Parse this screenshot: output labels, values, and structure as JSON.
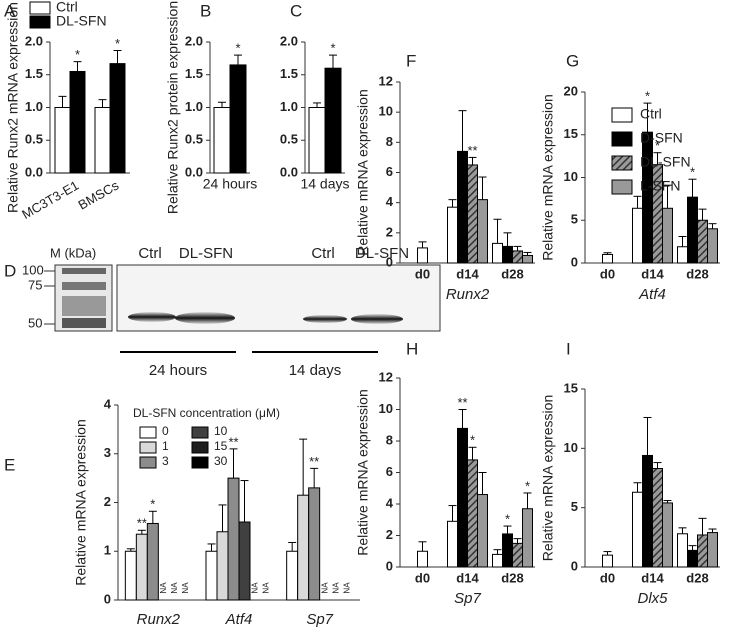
{
  "chart_data": [
    {
      "type": "bar",
      "panel": "A",
      "ylabel": "Relative Runx2 mRNA expression",
      "categories": [
        "MC3T3-E1",
        "BMSCs"
      ],
      "ylim": [
        0,
        2.0
      ],
      "yticks": [
        {
          "value": 0,
          "label": "0.0"
        },
        {
          "value": 0.5,
          "label": "0.5"
        },
        {
          "value": 1.0,
          "label": "1.0"
        },
        {
          "value": 1.5,
          "label": "1.5"
        },
        {
          "value": 2.0,
          "label": "2.0"
        }
      ],
      "series": [
        {
          "name": "Ctrl",
          "color": "#ffffff",
          "values": [
            1.0,
            1.0
          ],
          "errors": [
            0.17,
            0.12
          ]
        },
        {
          "name": "DL-SFN",
          "color": "#000000",
          "values": [
            1.55,
            1.67
          ],
          "errors": [
            0.15,
            0.2
          ],
          "stars": [
            "*",
            "*"
          ]
        }
      ]
    },
    {
      "type": "bar",
      "panel": "B",
      "ylabel": "Relative Runx2 protein expression",
      "categories": [
        "24 hours"
      ],
      "ylim": [
        0,
        2.0
      ],
      "yticks": [
        {
          "value": 0,
          "label": "0.0"
        },
        {
          "value": 0.5,
          "label": "0.5"
        },
        {
          "value": 1.0,
          "label": "1.0"
        },
        {
          "value": 1.5,
          "label": "1.5"
        },
        {
          "value": 2.0,
          "label": "2.0"
        }
      ],
      "series": [
        {
          "color": "#ffffff",
          "values": [
            1.0
          ],
          "errors": [
            0.08
          ]
        },
        {
          "color": "#000000",
          "values": [
            1.65
          ],
          "errors": [
            0.15
          ],
          "stars": [
            "*"
          ]
        }
      ]
    },
    {
      "type": "bar",
      "panel": "C",
      "categories": [
        "14 days"
      ],
      "ylim": [
        0,
        2.0
      ],
      "yticks": [
        {
          "value": 0,
          "label": "0.0"
        },
        {
          "value": 0.5,
          "label": "0.5"
        },
        {
          "value": 1.0,
          "label": "1.0"
        },
        {
          "value": 1.5,
          "label": "1.5"
        },
        {
          "value": 2.0,
          "label": "2.0"
        }
      ],
      "series": [
        {
          "color": "#ffffff",
          "values": [
            1.0
          ],
          "errors": [
            0.07
          ]
        },
        {
          "color": "#000000",
          "values": [
            1.6
          ],
          "errors": [
            0.2
          ],
          "stars": [
            "*"
          ]
        }
      ]
    },
    {
      "type": "bar",
      "panel": "E",
      "ylabel": "Relative mRNA expression",
      "legend_title": "DL-SFN concentration (μM)",
      "categories": [
        "Runx2",
        "Atf4",
        "Sp7"
      ],
      "ylim": [
        0,
        4
      ],
      "yticks": [
        0,
        1,
        2,
        3,
        4
      ],
      "series": [
        {
          "name": "0",
          "color": "#ffffff",
          "values": [
            1.0,
            1.0,
            1.0
          ],
          "errors": [
            0.05,
            0.15,
            0.18
          ]
        },
        {
          "name": "1",
          "color": "#d9d9d9",
          "values": [
            1.35,
            1.4,
            2.15
          ],
          "errors": [
            0.08,
            0.55,
            1.15
          ],
          "stars": [
            "**",
            null,
            null
          ]
        },
        {
          "name": "3",
          "color": "#8c8c8c",
          "values": [
            1.57,
            2.5,
            2.3
          ],
          "errors": [
            0.25,
            0.6,
            0.4
          ],
          "stars": [
            "*",
            "**",
            "**"
          ]
        },
        {
          "name": "10",
          "color": "#404040",
          "values": [
            null,
            1.6,
            null
          ],
          "errors": [
            null,
            0.85,
            null
          ],
          "value_labels": [
            "NA",
            null,
            "NA"
          ]
        },
        {
          "name": "15",
          "color": "#1f1f1f",
          "values": [
            null,
            null,
            null
          ],
          "value_labels": [
            "NA",
            "NA",
            "NA"
          ]
        },
        {
          "name": "30",
          "color": "#000000",
          "values": [
            null,
            null,
            null
          ],
          "value_labels": [
            "NA",
            "NA",
            "NA"
          ]
        }
      ]
    },
    {
      "type": "bar",
      "panel": "F",
      "ylabel": "Relative mRNA expression",
      "xlabel": "Runx2",
      "categories": [
        "d0",
        "d14",
        "d28"
      ],
      "ylim": [
        0,
        12
      ],
      "yticks": [
        0,
        2,
        4,
        6,
        8,
        10,
        12
      ],
      "series": [
        {
          "color": "#ffffff",
          "values": [
            1.0,
            3.7,
            1.3
          ],
          "errors": [
            0.4,
            0.5,
            1.6
          ]
        },
        {
          "color": "#000000",
          "values": [
            null,
            7.4,
            1.1
          ],
          "errors": [
            null,
            2.7,
            0.9
          ]
        },
        {
          "color": "#555555",
          "hatch": true,
          "values": [
            null,
            6.5,
            0.8
          ],
          "errors": [
            null,
            0.5,
            0.3
          ],
          "stars": [
            null,
            "**",
            null
          ]
        },
        {
          "color": "#999999",
          "values": [
            null,
            4.2,
            0.5
          ],
          "errors": [
            null,
            1.5,
            0.2
          ]
        }
      ]
    },
    {
      "type": "bar",
      "panel": "G",
      "ylabel": "Relative mRNA expression",
      "xlabel": "Atf4",
      "categories": [
        "d0",
        "d14",
        "d28"
      ],
      "ylim": [
        0,
        20
      ],
      "yticks": [
        0,
        5,
        10,
        15,
        20
      ],
      "series": [
        {
          "name": "Ctrl",
          "color": "#ffffff",
          "values": [
            1.0,
            6.4,
            1.9
          ],
          "errors": [
            0.2,
            1.4,
            1.2
          ]
        },
        {
          "name": "D-SFN",
          "color": "#000000",
          "values": [
            null,
            15.3,
            7.7
          ],
          "errors": [
            null,
            3.4,
            2.1
          ],
          "stars": [
            null,
            "*",
            "*"
          ]
        },
        {
          "name": "DL-SFN",
          "color": "#555555",
          "hatch": true,
          "values": [
            null,
            11.5,
            5.0
          ],
          "errors": [
            null,
            1.4,
            1.3
          ],
          "stars": [
            null,
            "*",
            null
          ]
        },
        {
          "name": "L-SFN",
          "color": "#999999",
          "values": [
            null,
            6.4,
            4.0
          ],
          "errors": [
            null,
            2.7,
            0.6
          ]
        }
      ]
    },
    {
      "type": "bar",
      "panel": "H",
      "ylabel": "Relative mRNA expression",
      "xlabel": "Sp7",
      "categories": [
        "d0",
        "d14",
        "d28"
      ],
      "ylim": [
        0,
        12
      ],
      "yticks": [
        0,
        2,
        4,
        6,
        8,
        10,
        12
      ],
      "series": [
        {
          "color": "#ffffff",
          "values": [
            1.0,
            2.9,
            0.8
          ],
          "errors": [
            0.6,
            1.0,
            0.3
          ]
        },
        {
          "color": "#000000",
          "values": [
            null,
            8.8,
            2.1
          ],
          "errors": [
            null,
            1.2,
            0.5
          ],
          "stars": [
            null,
            "**",
            "*"
          ]
        },
        {
          "color": "#555555",
          "hatch": true,
          "values": [
            null,
            6.8,
            1.5
          ],
          "errors": [
            null,
            0.8,
            0.3
          ],
          "stars": [
            null,
            "*",
            null
          ]
        },
        {
          "color": "#999999",
          "values": [
            null,
            4.6,
            3.7
          ],
          "errors": [
            null,
            1.4,
            1.0
          ],
          "stars": [
            null,
            null,
            "*"
          ]
        }
      ]
    },
    {
      "type": "bar",
      "panel": "I",
      "ylabel": "Relative mRNA expression",
      "xlabel": "Dlx5",
      "categories": [
        "d0",
        "d14",
        "d28"
      ],
      "ylim": [
        0,
        15
      ],
      "yticks": [
        0,
        5,
        10,
        15
      ],
      "series": [
        {
          "color": "#ffffff",
          "values": [
            1.0,
            6.3,
            2.8
          ],
          "errors": [
            0.3,
            0.8,
            0.5
          ]
        },
        {
          "color": "#000000",
          "values": [
            null,
            9.4,
            1.4
          ],
          "errors": [
            null,
            3.2,
            0.4
          ]
        },
        {
          "color": "#555555",
          "hatch": true,
          "values": [
            null,
            8.3,
            2.7
          ],
          "errors": [
            null,
            0.5,
            1.4
          ]
        },
        {
          "color": "#999999",
          "values": [
            null,
            5.4,
            2.9
          ],
          "errors": [
            null,
            0.2,
            0.3
          ]
        }
      ]
    }
  ],
  "blot": {
    "panel": "D",
    "marker_title": "M (kDa)",
    "marker_ticks": [
      100,
      75,
      50
    ],
    "lanes": [
      "Ctrl",
      "DL-SFN",
      "Ctrl",
      "DL-SFN"
    ],
    "groups": [
      "24 hours",
      "14 days"
    ]
  }
}
